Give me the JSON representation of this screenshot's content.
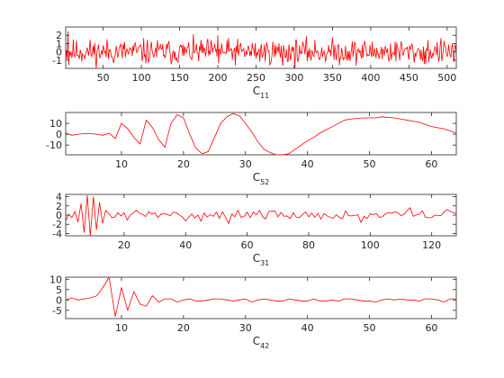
{
  "chart_data": [
    {
      "type": "line",
      "xlabel_main": "C",
      "xlabel_sub": "11",
      "xlim": [
        1,
        512
      ],
      "ylim": [
        -2,
        3
      ],
      "xticks": [
        50,
        100,
        150,
        200,
        250,
        300,
        350,
        400,
        450,
        500
      ],
      "yticks": [
        -1,
        0,
        1,
        2
      ],
      "series": [
        {
          "color": "#ff0000",
          "generator": "noise",
          "length": 512,
          "amplitude": 0.75,
          "seed": 11,
          "spikes": [
            [
              4,
              2.5
            ],
            [
              5,
              -1.6
            ],
            [
              200,
              2.0
            ],
            [
              201,
              -1.4
            ],
            [
              285,
              -1.7
            ],
            [
              470,
              -1.5
            ]
          ]
        }
      ]
    },
    {
      "type": "line",
      "xlabel_main": "C",
      "xlabel_sub": "52",
      "xlim": [
        1,
        64
      ],
      "ylim": [
        -19,
        20
      ],
      "xticks": [
        10,
        20,
        30,
        40,
        50,
        60
      ],
      "yticks": [
        -10,
        0,
        10
      ],
      "series": [
        {
          "color": "#ff0000",
          "x": [
            1,
            2,
            3,
            4,
            5,
            6,
            7,
            8,
            9,
            10,
            11,
            12,
            13,
            14,
            15,
            16,
            17,
            18,
            19,
            20,
            21,
            22,
            23,
            24,
            25,
            26,
            27,
            28,
            29,
            30,
            31,
            32,
            33,
            34,
            35,
            36,
            37,
            38,
            39,
            40,
            41,
            42,
            43,
            44,
            45,
            46,
            47,
            48,
            49,
            50,
            51,
            52,
            53,
            54,
            55,
            56,
            57,
            58,
            59,
            60,
            61,
            62,
            63,
            64
          ],
          "y": [
            1,
            -1,
            0,
            0.5,
            0.5,
            0,
            -1,
            1,
            -4,
            10,
            5,
            -3,
            -9,
            13,
            6,
            -5,
            -12,
            10,
            18,
            15,
            0,
            -13,
            -18,
            -16,
            -3,
            10,
            16,
            19,
            17,
            10,
            2,
            -7,
            -14,
            -17,
            -19,
            -19,
            -18,
            -14,
            -10,
            -6,
            -3,
            1,
            4,
            7,
            10,
            13,
            14,
            14.5,
            15,
            15,
            15,
            16,
            15.5,
            15,
            14,
            13,
            12,
            11,
            9,
            7,
            6,
            5,
            3,
            1
          ]
        }
      ]
    },
    {
      "type": "line",
      "xlabel_main": "C",
      "xlabel_sub": "31",
      "xlim": [
        1,
        128
      ],
      "ylim": [
        -4.5,
        4.5
      ],
      "xticks": [
        20,
        40,
        60,
        80,
        100,
        120
      ],
      "yticks": [
        -4,
        -2,
        0,
        2,
        4
      ],
      "series": [
        {
          "color": "#ff0000",
          "generator": "noise",
          "length": 128,
          "amplitude": 0.55,
          "seed": 31,
          "spikes": [
            [
              5,
              -1.5
            ],
            [
              6,
              2.5
            ],
            [
              7,
              -3.8
            ],
            [
              8,
              4.3
            ],
            [
              9,
              -4.5
            ],
            [
              10,
              4.0
            ],
            [
              11,
              -3.2
            ],
            [
              12,
              2.8
            ],
            [
              13,
              -1.8
            ],
            [
              14,
              1.0
            ],
            [
              54,
              -1.8
            ],
            [
              97,
              -1.6
            ],
            [
              113,
              1.6
            ],
            [
              125,
              1.2
            ]
          ]
        }
      ]
    },
    {
      "type": "line",
      "xlabel_main": "C",
      "xlabel_sub": "42",
      "xlim": [
        1,
        64
      ],
      "ylim": [
        -9,
        11
      ],
      "xticks": [
        10,
        20,
        30,
        40,
        50,
        60
      ],
      "yticks": [
        -5,
        0,
        5,
        10
      ],
      "series": [
        {
          "color": "#ff0000",
          "x": [
            1,
            2,
            3,
            4,
            5,
            6,
            7,
            8,
            9,
            10,
            11,
            12,
            13,
            14,
            15,
            16,
            17,
            18,
            19,
            20,
            21,
            22,
            23,
            24,
            25,
            26,
            27,
            28,
            29,
            30,
            31,
            32,
            33,
            34,
            35,
            36,
            37,
            38,
            39,
            40,
            41,
            42,
            43,
            44,
            45,
            46,
            47,
            48,
            49,
            50,
            51,
            52,
            53,
            54,
            55,
            56,
            57,
            58,
            59,
            60,
            61,
            62,
            63,
            64
          ],
          "y": [
            0,
            1,
            0,
            0.5,
            1,
            2,
            6,
            11,
            -8,
            6,
            -5,
            4,
            -2,
            -3,
            2,
            -1,
            0.5,
            0.5,
            -1,
            0,
            0.5,
            -0.5,
            -0.5,
            0,
            0.5,
            0.5,
            0,
            -0.5,
            0,
            0.5,
            -1,
            0,
            0.5,
            0,
            -0.5,
            -0.5,
            0.5,
            0,
            -0.5,
            -0.5,
            0.5,
            -0.5,
            -0.5,
            0,
            -0.5,
            0.5,
            0.5,
            0,
            -0.5,
            -0.5,
            -1,
            0,
            0.5,
            0,
            0.5,
            0,
            0,
            -0.5,
            0.5,
            0.5,
            0,
            -1,
            0.5,
            0.5
          ]
        }
      ]
    }
  ]
}
